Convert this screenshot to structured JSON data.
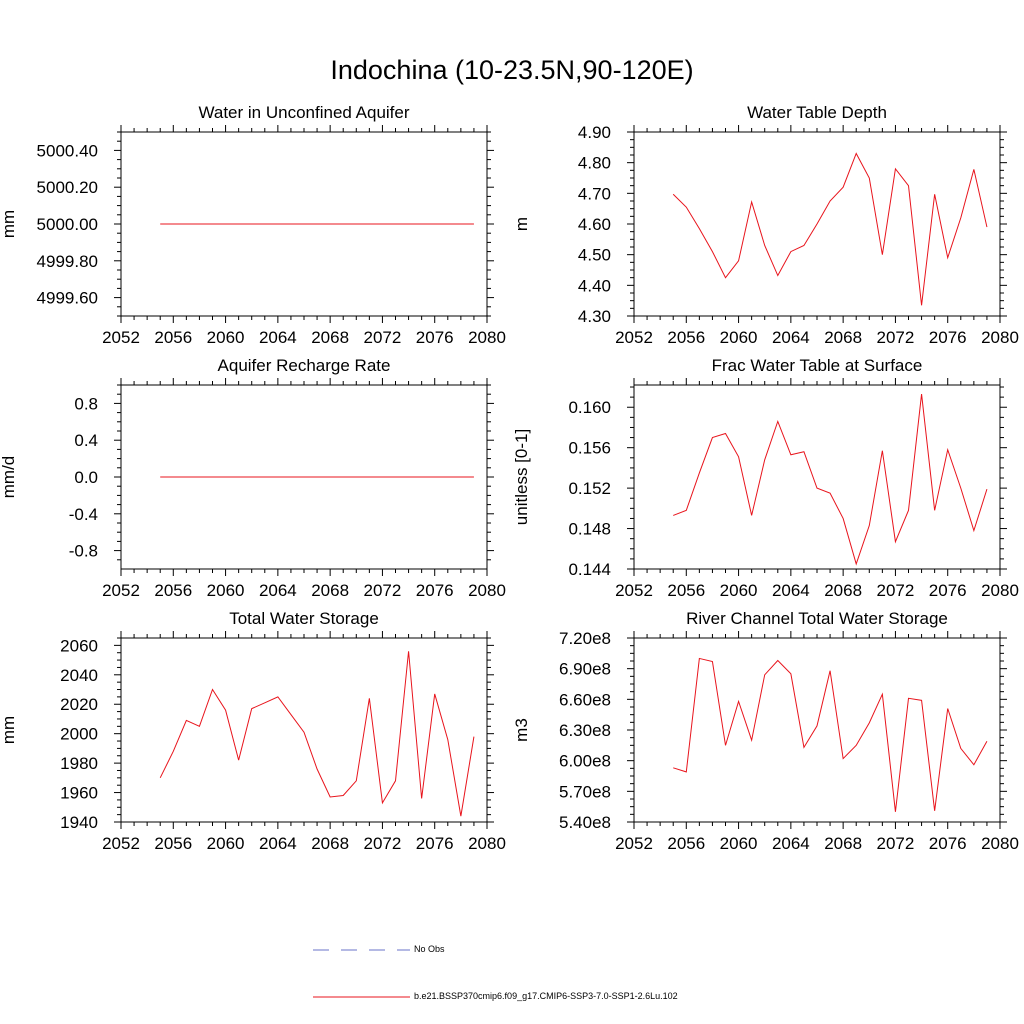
{
  "title": "Indochina (10-23.5N,90-120E)",
  "colors": {
    "model": "#e8141c",
    "obs": "#6a73c9",
    "axis": "#000000"
  },
  "legend": {
    "entries": [
      {
        "label": "No Obs",
        "style": "dashed",
        "color": "#6a73c9"
      },
      {
        "label": "b.e21.BSSP370cmip6.f09_g17.CMIP6-SSP3-7.0-SSP1-2.6Lu.102",
        "style": "solid",
        "color": "#e8141c"
      }
    ]
  },
  "chart_data": [
    {
      "type": "line",
      "title": "Water in Unconfined Aquifer",
      "ylabel": "mm",
      "xlim": [
        2052,
        2080
      ],
      "xticks": [
        2052,
        2056,
        2060,
        2064,
        2068,
        2072,
        2076,
        2080
      ],
      "xtick_labels": [
        "2052",
        "2056",
        "2060",
        "2064",
        "2068",
        "2072",
        "2076",
        "2080"
      ],
      "ylim": [
        4999.5,
        5000.5
      ],
      "yticks": [
        4999.6,
        4999.8,
        5000.0,
        5000.2,
        5000.4
      ],
      "ytick_labels": [
        "4999.60",
        "4999.80",
        "5000.00",
        "5000.20",
        "5000.40"
      ],
      "series": [
        {
          "x": [
            2055,
            2056,
            2057,
            2058,
            2059,
            2060,
            2061,
            2062,
            2063,
            2064,
            2065,
            2066,
            2067,
            2068,
            2069,
            2070,
            2071,
            2072,
            2073,
            2074,
            2075,
            2076,
            2077,
            2078,
            2079
          ],
          "values": [
            5000,
            5000,
            5000,
            5000,
            5000,
            5000,
            5000,
            5000,
            5000,
            5000,
            5000,
            5000,
            5000,
            5000,
            5000,
            5000,
            5000,
            5000,
            5000,
            5000,
            5000,
            5000,
            5000,
            5000,
            5000
          ]
        }
      ]
    },
    {
      "type": "line",
      "title": "Water Table Depth",
      "ylabel": "m",
      "xlim": [
        2052,
        2080
      ],
      "xticks": [
        2052,
        2056,
        2060,
        2064,
        2068,
        2072,
        2076,
        2080
      ],
      "xtick_labels": [
        "2052",
        "2056",
        "2060",
        "2064",
        "2068",
        "2072",
        "2076",
        "2080"
      ],
      "ylim": [
        4.3,
        4.9
      ],
      "yticks": [
        4.3,
        4.4,
        4.5,
        4.6,
        4.7,
        4.8,
        4.9
      ],
      "ytick_labels": [
        "4.30",
        "4.40",
        "4.50",
        "4.60",
        "4.70",
        "4.80",
        "4.90"
      ],
      "series": [
        {
          "x": [
            2055,
            2056,
            2057,
            2058,
            2059,
            2060,
            2061,
            2062,
            2063,
            2064,
            2065,
            2066,
            2067,
            2068,
            2069,
            2070,
            2071,
            2072,
            2073,
            2074,
            2075,
            2076,
            2077,
            2078,
            2079
          ],
          "values": [
            4.697,
            4.655,
            4.585,
            4.51,
            4.425,
            4.48,
            4.672,
            4.53,
            4.432,
            4.51,
            4.53,
            4.6,
            4.675,
            4.72,
            4.83,
            4.75,
            4.5,
            4.78,
            4.725,
            4.335,
            4.697,
            4.49,
            4.62,
            4.778,
            4.59
          ]
        }
      ]
    },
    {
      "type": "line",
      "title": "Aquifer Recharge Rate",
      "ylabel": "mm/d",
      "xlim": [
        2052,
        2080
      ],
      "xticks": [
        2052,
        2056,
        2060,
        2064,
        2068,
        2072,
        2076,
        2080
      ],
      "xtick_labels": [
        "2052",
        "2056",
        "2060",
        "2064",
        "2068",
        "2072",
        "2076",
        "2080"
      ],
      "ylim": [
        -1.0,
        1.0
      ],
      "yticks": [
        -0.8,
        -0.4,
        0.0,
        0.4,
        0.8
      ],
      "ytick_labels": [
        "-0.8",
        "-0.4",
        "0.0",
        "0.4",
        "0.8"
      ],
      "series": [
        {
          "x": [
            2055,
            2056,
            2057,
            2058,
            2059,
            2060,
            2061,
            2062,
            2063,
            2064,
            2065,
            2066,
            2067,
            2068,
            2069,
            2070,
            2071,
            2072,
            2073,
            2074,
            2075,
            2076,
            2077,
            2078,
            2079
          ],
          "values": [
            0,
            0,
            0,
            0,
            0,
            0,
            0,
            0,
            0,
            0,
            0,
            0,
            0,
            0,
            0,
            0,
            0,
            0,
            0,
            0,
            0,
            0,
            0,
            0,
            0
          ]
        }
      ]
    },
    {
      "type": "line",
      "title": "Frac Water Table at Surface",
      "ylabel": "unitless [0-1]",
      "xlim": [
        2052,
        2080
      ],
      "xticks": [
        2052,
        2056,
        2060,
        2064,
        2068,
        2072,
        2076,
        2080
      ],
      "xtick_labels": [
        "2052",
        "2056",
        "2060",
        "2064",
        "2068",
        "2072",
        "2076",
        "2080"
      ],
      "ylim": [
        0.144,
        0.1622
      ],
      "yticks": [
        0.144,
        0.148,
        0.152,
        0.156,
        0.16
      ],
      "ytick_labels": [
        "0.144",
        "0.148",
        "0.152",
        "0.156",
        "0.160"
      ],
      "series": [
        {
          "x": [
            2055,
            2056,
            2057,
            2058,
            2059,
            2060,
            2061,
            2062,
            2063,
            2064,
            2065,
            2066,
            2067,
            2068,
            2069,
            2070,
            2071,
            2072,
            2073,
            2074,
            2075,
            2076,
            2077,
            2078,
            2079
          ],
          "values": [
            0.1493,
            0.1498,
            0.1535,
            0.157,
            0.1574,
            0.1551,
            0.1493,
            0.1548,
            0.1586,
            0.1553,
            0.1556,
            0.152,
            0.1515,
            0.149,
            0.1445,
            0.1483,
            0.1557,
            0.1467,
            0.1498,
            0.1613,
            0.1498,
            0.1558,
            0.152,
            0.1478,
            0.1519
          ]
        }
      ]
    },
    {
      "type": "line",
      "title": "Total Water Storage",
      "ylabel": "mm",
      "xlim": [
        2052,
        2080
      ],
      "xticks": [
        2052,
        2056,
        2060,
        2064,
        2068,
        2072,
        2076,
        2080
      ],
      "xtick_labels": [
        "2052",
        "2056",
        "2060",
        "2064",
        "2068",
        "2072",
        "2076",
        "2080"
      ],
      "ylim": [
        1940,
        2065
      ],
      "yticks": [
        1940,
        1960,
        1980,
        2000,
        2020,
        2040,
        2060
      ],
      "ytick_labels": [
        "1940",
        "1960",
        "1980",
        "2000",
        "2020",
        "2040",
        "2060"
      ],
      "series": [
        {
          "x": [
            2055,
            2056,
            2057,
            2058,
            2059,
            2060,
            2061,
            2062,
            2063,
            2064,
            2065,
            2066,
            2067,
            2068,
            2069,
            2070,
            2071,
            2072,
            2073,
            2074,
            2075,
            2076,
            2077,
            2078,
            2079
          ],
          "values": [
            1970,
            1988,
            2009,
            2005,
            2030,
            2016,
            1982,
            2017,
            2021,
            2025,
            2013,
            2001,
            1976,
            1957,
            1958,
            1968,
            2024,
            1953,
            1968,
            2056,
            1956,
            2027,
            1996,
            1944,
            1998
          ]
        }
      ]
    },
    {
      "type": "line",
      "title": "River Channel Total Water Storage",
      "ylabel": "m3",
      "xlim": [
        2052,
        2080
      ],
      "xticks": [
        2052,
        2056,
        2060,
        2064,
        2068,
        2072,
        2076,
        2080
      ],
      "xtick_labels": [
        "2052",
        "2056",
        "2060",
        "2064",
        "2068",
        "2072",
        "2076",
        "2080"
      ],
      "ylim": [
        540000000,
        720000000
      ],
      "yticks": [
        540000000,
        570000000,
        600000000,
        630000000,
        660000000,
        690000000,
        720000000
      ],
      "ytick_labels": [
        "5.40e8",
        "5.70e8",
        "6.00e8",
        "6.30e8",
        "6.60e8",
        "6.90e8",
        "7.20e8"
      ],
      "series": [
        {
          "x": [
            2055,
            2056,
            2057,
            2058,
            2059,
            2060,
            2061,
            2062,
            2063,
            2064,
            2065,
            2066,
            2067,
            2068,
            2069,
            2070,
            2071,
            2072,
            2073,
            2074,
            2075,
            2076,
            2077,
            2078,
            2079
          ],
          "values": [
            593000000,
            589000000,
            700000000,
            697000000,
            615000000,
            658000000,
            620000000,
            684000000,
            698000000,
            685000000,
            613000000,
            634000000,
            688000000,
            602000000,
            615000000,
            637000000,
            665000000,
            550000000,
            661000000,
            659000000,
            551000000,
            651000000,
            612000000,
            596000000,
            619000000
          ]
        }
      ]
    }
  ]
}
